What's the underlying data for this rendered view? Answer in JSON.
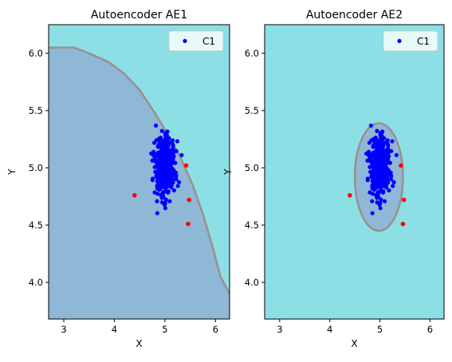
{
  "chart_data": [
    {
      "type": "scatter",
      "title": "Autoencoder AE1",
      "xlabel": "X",
      "ylabel": "Y",
      "xlim": [
        2.7,
        6.28
      ],
      "ylim": [
        3.68,
        6.25
      ],
      "xticks": [
        "3",
        "4",
        "5",
        "6"
      ],
      "yticks": [
        "4.0",
        "4.5",
        "5.0",
        "5.5",
        "6.0"
      ],
      "background_color": "#8bdfe5",
      "region_color": "#8fb7d6",
      "boundary_color": "#9b8f8f",
      "region": {
        "shape": "arc",
        "center": [
          2.7,
          3.68
        ],
        "boundary": [
          [
            2.7,
            6.05
          ],
          [
            3.2,
            6.05
          ],
          [
            3.5,
            6.0
          ],
          [
            3.9,
            5.92
          ],
          [
            4.2,
            5.82
          ],
          [
            4.5,
            5.68
          ],
          [
            4.8,
            5.48
          ],
          [
            5.05,
            5.3
          ],
          [
            5.3,
            5.1
          ],
          [
            5.55,
            4.85
          ],
          [
            5.75,
            4.6
          ],
          [
            5.95,
            4.3
          ],
          [
            6.1,
            4.05
          ],
          [
            6.28,
            3.9
          ]
        ]
      },
      "series": [
        {
          "name": "C1",
          "color": "#0000ff",
          "cluster": {
            "center": [
              5.0,
              5.0
            ],
            "sx": 0.1,
            "sy": 0.12,
            "n": 450
          }
        }
      ],
      "outliers": {
        "color": "#ff0000",
        "points": [
          [
            4.4,
            4.76
          ],
          [
            5.42,
            5.02
          ],
          [
            5.48,
            4.72
          ],
          [
            5.46,
            4.51
          ]
        ]
      },
      "legend": {
        "position": "top-right",
        "entries": [
          "C1"
        ]
      }
    },
    {
      "type": "scatter",
      "title": "Autoencoder AE2",
      "xlabel": "X",
      "ylabel": "Y",
      "xlim": [
        2.7,
        6.28
      ],
      "ylim": [
        3.68,
        6.25
      ],
      "xticks": [
        "3",
        "4",
        "5",
        "6"
      ],
      "yticks": [
        "4.0",
        "4.5",
        "5.0",
        "5.5",
        "6.0"
      ],
      "background_color": "#8bdfe5",
      "region_color": "#8fb7d6",
      "boundary_color": "#9b8f8f",
      "region": {
        "shape": "ellipse",
        "center": [
          4.98,
          4.92
        ],
        "rx": 0.48,
        "ry": 0.47
      },
      "series": [
        {
          "name": "C1",
          "color": "#0000ff",
          "cluster": {
            "center": [
              5.0,
              5.0
            ],
            "sx": 0.1,
            "sy": 0.12,
            "n": 450
          }
        }
      ],
      "outliers": {
        "color": "#ff0000",
        "points": [
          [
            4.4,
            4.76
          ],
          [
            5.42,
            5.02
          ],
          [
            5.48,
            4.72
          ],
          [
            5.46,
            4.51
          ]
        ]
      },
      "legend": {
        "position": "top-right",
        "entries": [
          "C1"
        ]
      }
    }
  ]
}
